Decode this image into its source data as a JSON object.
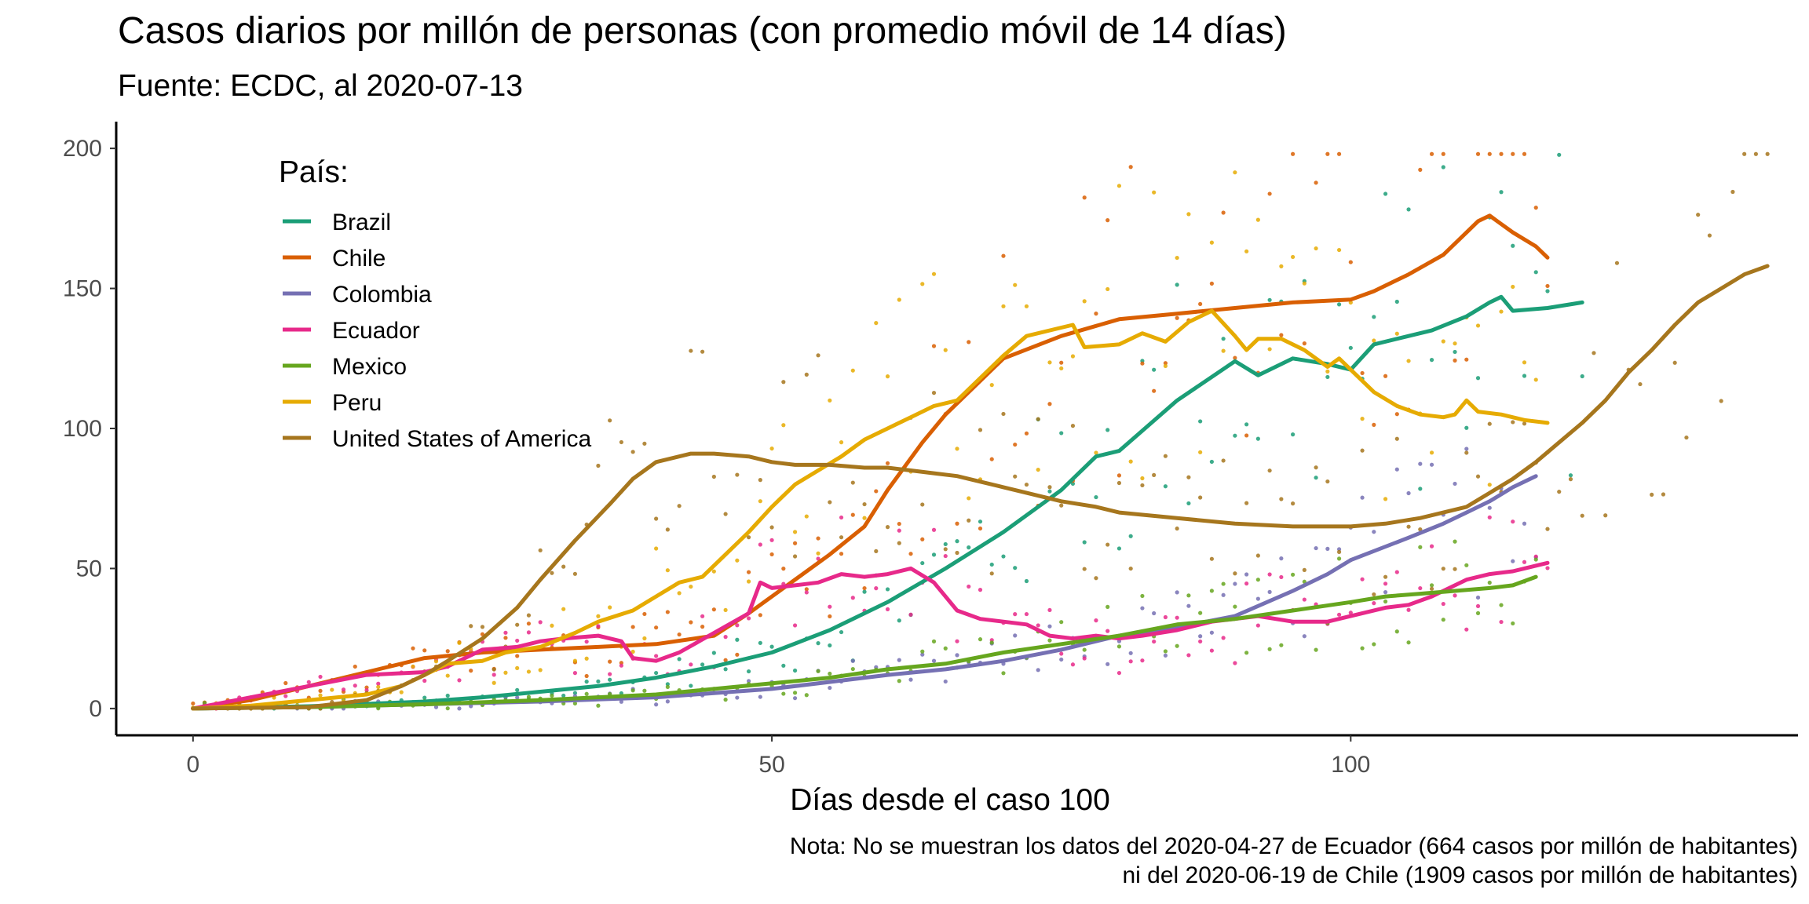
{
  "chart_data": {
    "type": "line",
    "title": "Casos diarios por millón de personas (con promedio móvil de 14 días)",
    "subtitle": "Fuente: ECDC, al 2020-07-13",
    "xlabel": "Días desde el caso 100",
    "ylabel": "",
    "xlim": [
      -6.5,
      138.5
    ],
    "ylim": [
      -9,
      209
    ],
    "xticks": [
      0,
      50,
      100
    ],
    "yticks": [
      0,
      50,
      100,
      150,
      200
    ],
    "grid": false,
    "legend": {
      "title": "País:",
      "position": "top-left"
    },
    "caption": [
      "Nota: No se muestran los datos del 2020-04-27 de Ecuador (664 casos por millón de habitantes)",
      "ni del 2020-06-19 de Chile (1909 casos por millón de habitantes)"
    ],
    "series": [
      {
        "name": "Brazil",
        "color": "#1b9e77",
        "points": [
          [
            0,
            0
          ],
          [
            10,
            0.8
          ],
          [
            20,
            2.5
          ],
          [
            25,
            4
          ],
          [
            30,
            6
          ],
          [
            35,
            8
          ],
          [
            40,
            11
          ],
          [
            45,
            15
          ],
          [
            50,
            20
          ],
          [
            55,
            28
          ],
          [
            60,
            38
          ],
          [
            65,
            50
          ],
          [
            70,
            63
          ],
          [
            75,
            78
          ],
          [
            78,
            90
          ],
          [
            80,
            92
          ],
          [
            85,
            110
          ],
          [
            90,
            124
          ],
          [
            92,
            119
          ],
          [
            95,
            125
          ],
          [
            98,
            123
          ],
          [
            100,
            121
          ],
          [
            102,
            130
          ],
          [
            105,
            133
          ],
          [
            107,
            135
          ],
          [
            110,
            140
          ],
          [
            112,
            145
          ],
          [
            113,
            147
          ],
          [
            114,
            142
          ],
          [
            117,
            143
          ],
          [
            120,
            145
          ]
        ]
      },
      {
        "name": "Chile",
        "color": "#d95f02",
        "points": [
          [
            0,
            0
          ],
          [
            5,
            3
          ],
          [
            10,
            8
          ],
          [
            15,
            13
          ],
          [
            20,
            18
          ],
          [
            25,
            20
          ],
          [
            30,
            21
          ],
          [
            35,
            22
          ],
          [
            40,
            23
          ],
          [
            45,
            26
          ],
          [
            48,
            34
          ],
          [
            50,
            40
          ],
          [
            52,
            46
          ],
          [
            55,
            55
          ],
          [
            58,
            65
          ],
          [
            60,
            78
          ],
          [
            63,
            95
          ],
          [
            65,
            105
          ],
          [
            70,
            125
          ],
          [
            75,
            133
          ],
          [
            80,
            139
          ],
          [
            85,
            141
          ],
          [
            90,
            143
          ],
          [
            95,
            145
          ],
          [
            100,
            146
          ],
          [
            102,
            149
          ],
          [
            105,
            155
          ],
          [
            108,
            162
          ],
          [
            110,
            170
          ],
          [
            111,
            174
          ],
          [
            112,
            176
          ],
          [
            113,
            173
          ],
          [
            114,
            170
          ],
          [
            116,
            165
          ],
          [
            117,
            161
          ]
        ]
      },
      {
        "name": "Colombia",
        "color": "#7570b3",
        "points": [
          [
            0,
            0
          ],
          [
            10,
            0.5
          ],
          [
            20,
            1.5
          ],
          [
            30,
            2.5
          ],
          [
            40,
            4
          ],
          [
            50,
            7
          ],
          [
            60,
            12
          ],
          [
            65,
            14
          ],
          [
            70,
            17
          ],
          [
            75,
            21
          ],
          [
            80,
            26
          ],
          [
            85,
            29
          ],
          [
            90,
            33
          ],
          [
            95,
            42
          ],
          [
            98,
            48
          ],
          [
            100,
            53
          ],
          [
            105,
            61
          ],
          [
            108,
            66
          ],
          [
            110,
            70
          ],
          [
            112,
            74
          ],
          [
            114,
            79
          ],
          [
            116,
            83
          ]
        ]
      },
      {
        "name": "Ecuador",
        "color": "#e7298a",
        "points": [
          [
            0,
            0
          ],
          [
            5,
            4
          ],
          [
            10,
            8
          ],
          [
            15,
            12
          ],
          [
            20,
            13
          ],
          [
            22,
            15
          ],
          [
            25,
            21
          ],
          [
            28,
            22
          ],
          [
            30,
            24
          ],
          [
            32,
            25
          ],
          [
            35,
            26
          ],
          [
            37,
            24
          ],
          [
            38,
            18
          ],
          [
            40,
            17
          ],
          [
            42,
            20
          ],
          [
            45,
            27
          ],
          [
            48,
            34
          ],
          [
            49,
            45
          ],
          [
            50,
            43
          ],
          [
            52,
            44
          ],
          [
            54,
            45
          ],
          [
            56,
            48
          ],
          [
            58,
            47
          ],
          [
            60,
            48
          ],
          [
            62,
            50
          ],
          [
            64,
            45
          ],
          [
            66,
            35
          ],
          [
            68,
            32
          ],
          [
            70,
            31
          ],
          [
            72,
            30
          ],
          [
            74,
            26
          ],
          [
            76,
            25
          ],
          [
            78,
            26
          ],
          [
            80,
            25
          ],
          [
            82,
            26
          ],
          [
            85,
            28
          ],
          [
            88,
            31
          ],
          [
            90,
            32
          ],
          [
            92,
            33
          ],
          [
            95,
            31
          ],
          [
            98,
            31
          ],
          [
            100,
            33
          ],
          [
            103,
            36
          ],
          [
            105,
            37
          ],
          [
            107,
            40
          ],
          [
            109,
            44
          ],
          [
            110,
            46
          ],
          [
            112,
            48
          ],
          [
            114,
            49
          ],
          [
            115,
            50
          ],
          [
            117,
            52
          ]
        ]
      },
      {
        "name": "Mexico",
        "color": "#66a61e",
        "points": [
          [
            0,
            0
          ],
          [
            10,
            0.5
          ],
          [
            20,
            1.5
          ],
          [
            30,
            3
          ],
          [
            40,
            5
          ],
          [
            50,
            9
          ],
          [
            55,
            11
          ],
          [
            60,
            14
          ],
          [
            65,
            16
          ],
          [
            70,
            20
          ],
          [
            75,
            23
          ],
          [
            80,
            26
          ],
          [
            85,
            30
          ],
          [
            90,
            32
          ],
          [
            95,
            35
          ],
          [
            100,
            38
          ],
          [
            103,
            40
          ],
          [
            106,
            41
          ],
          [
            109,
            42
          ],
          [
            112,
            43
          ],
          [
            114,
            44
          ],
          [
            116,
            47
          ]
        ]
      },
      {
        "name": "Peru",
        "color": "#e6ab02",
        "points": [
          [
            0,
            0
          ],
          [
            5,
            1
          ],
          [
            10,
            3
          ],
          [
            15,
            5
          ],
          [
            18,
            8
          ],
          [
            20,
            12
          ],
          [
            22,
            16
          ],
          [
            25,
            17
          ],
          [
            27,
            20
          ],
          [
            30,
            22
          ],
          [
            33,
            27
          ],
          [
            35,
            31
          ],
          [
            38,
            35
          ],
          [
            40,
            40
          ],
          [
            42,
            45
          ],
          [
            44,
            47
          ],
          [
            46,
            55
          ],
          [
            48,
            63
          ],
          [
            50,
            72
          ],
          [
            52,
            80
          ],
          [
            54,
            85
          ],
          [
            56,
            90
          ],
          [
            58,
            96
          ],
          [
            60,
            100
          ],
          [
            62,
            104
          ],
          [
            64,
            108
          ],
          [
            66,
            110
          ],
          [
            68,
            118
          ],
          [
            70,
            126
          ],
          [
            72,
            133
          ],
          [
            75,
            136
          ],
          [
            76,
            137
          ],
          [
            77,
            129
          ],
          [
            80,
            130
          ],
          [
            82,
            134
          ],
          [
            84,
            131
          ],
          [
            86,
            138
          ],
          [
            88,
            142
          ],
          [
            90,
            133
          ],
          [
            91,
            128
          ],
          [
            92,
            132
          ],
          [
            94,
            132
          ],
          [
            96,
            128
          ],
          [
            98,
            122
          ],
          [
            99,
            125
          ],
          [
            100,
            121
          ],
          [
            102,
            113
          ],
          [
            104,
            108
          ],
          [
            106,
            105
          ],
          [
            108,
            104
          ],
          [
            109,
            105
          ],
          [
            110,
            110
          ],
          [
            111,
            106
          ],
          [
            113,
            105
          ],
          [
            115,
            103
          ],
          [
            117,
            102
          ]
        ]
      },
      {
        "name": "United States of America",
        "color": "#a6761d",
        "points": [
          [
            0,
            0
          ],
          [
            10,
            0.5
          ],
          [
            15,
            3
          ],
          [
            18,
            8
          ],
          [
            20,
            12
          ],
          [
            22,
            17
          ],
          [
            25,
            25
          ],
          [
            28,
            36
          ],
          [
            30,
            46
          ],
          [
            33,
            60
          ],
          [
            36,
            73
          ],
          [
            38,
            82
          ],
          [
            40,
            88
          ],
          [
            43,
            91
          ],
          [
            45,
            91
          ],
          [
            48,
            90
          ],
          [
            50,
            88
          ],
          [
            52,
            87
          ],
          [
            55,
            87
          ],
          [
            58,
            86
          ],
          [
            60,
            86
          ],
          [
            62,
            85
          ],
          [
            64,
            84
          ],
          [
            66,
            83
          ],
          [
            68,
            81
          ],
          [
            70,
            79
          ],
          [
            72,
            77
          ],
          [
            75,
            74
          ],
          [
            78,
            72
          ],
          [
            80,
            70
          ],
          [
            85,
            68
          ],
          [
            90,
            66
          ],
          [
            95,
            65
          ],
          [
            100,
            65
          ],
          [
            103,
            66
          ],
          [
            106,
            68
          ],
          [
            108,
            70
          ],
          [
            110,
            72
          ],
          [
            112,
            77
          ],
          [
            114,
            82
          ],
          [
            116,
            88
          ],
          [
            118,
            95
          ],
          [
            120,
            102
          ],
          [
            122,
            110
          ],
          [
            124,
            120
          ],
          [
            126,
            128
          ],
          [
            128,
            137
          ],
          [
            130,
            145
          ],
          [
            132,
            150
          ],
          [
            134,
            155
          ],
          [
            136,
            158
          ]
        ]
      }
    ]
  }
}
